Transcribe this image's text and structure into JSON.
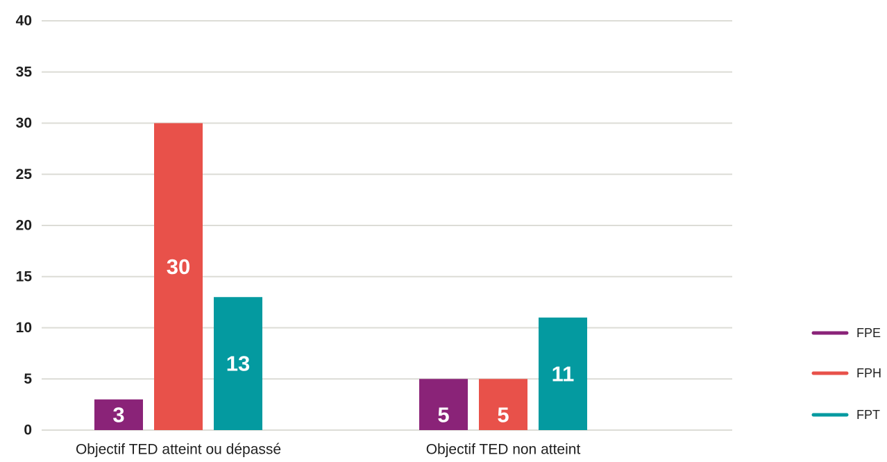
{
  "chart_data": {
    "type": "bar",
    "title": "",
    "xlabel": "",
    "ylabel": "",
    "categories": [
      "Objectif TED atteint ou dépassé",
      "Objectif TED non atteint"
    ],
    "series": [
      {
        "name": "FPE",
        "color": "#8a2378",
        "values": [
          3,
          5
        ],
        "labels": [
          "3",
          "5"
        ]
      },
      {
        "name": "FPH",
        "color": "#e8514a",
        "values": [
          30,
          5
        ],
        "labels": [
          "30",
          "5"
        ]
      },
      {
        "name": "FPT",
        "color": "#049aa0",
        "values": [
          13,
          11
        ],
        "labels": [
          "13",
          "11"
        ]
      }
    ],
    "ylim": [
      0,
      40
    ],
    "yticks": [
      0,
      5,
      10,
      15,
      20,
      25,
      30,
      35,
      40
    ],
    "grid": true,
    "legend_position": "bottom-right",
    "colors": {
      "grid": "#dcdcd6",
      "text": "#1f1f1f",
      "value_text": "#ffffff"
    }
  }
}
